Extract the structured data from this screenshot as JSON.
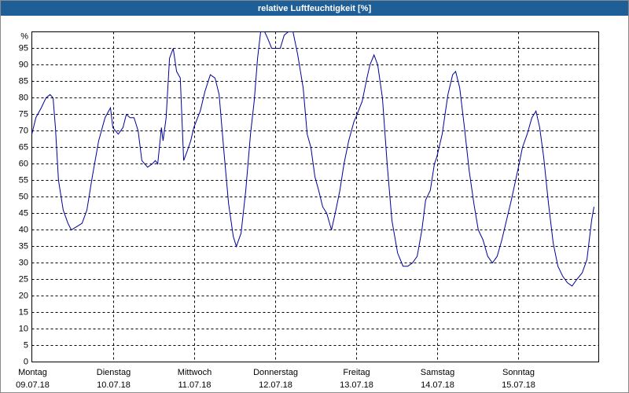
{
  "chart_data": {
    "type": "line",
    "title": "relative Luftfeuchtigkeit [%]",
    "xlim": [
      0,
      168
    ],
    "xticks": [
      {
        "value": 0,
        "label": "Montag"
      },
      {
        "value": 24,
        "label": "Dienstag"
      },
      {
        "value": 48,
        "label": "Mittwoch"
      },
      {
        "value": 72,
        "label": "Donnerstag"
      },
      {
        "value": 96,
        "label": "Freitag"
      },
      {
        "value": 120,
        "label": "Samstag"
      },
      {
        "value": 144,
        "label": "Sonntag"
      }
    ],
    "dates": [
      "09.07.18",
      "10.07.18",
      "11.07.18",
      "12.07.18",
      "13.07.18",
      "14.07.18",
      "15.07.18"
    ],
    "ylim": [
      0,
      100
    ],
    "yticks": [
      0,
      5,
      10,
      15,
      20,
      25,
      30,
      35,
      40,
      45,
      50,
      55,
      60,
      65,
      70,
      75,
      80,
      85,
      90,
      95,
      {
        "value": 100,
        "label": "%"
      }
    ],
    "grid": true,
    "series": [
      {
        "name": "relative Luftfeuchtigkeit",
        "color": "#00009c",
        "x": [
          0,
          1.2,
          2.8,
          4.2,
          5.4,
          6.3,
          7.0,
          7.9,
          9.3,
          10.7,
          11.7,
          13.3,
          14.9,
          16.3,
          17.9,
          19.8,
          21.7,
          23.3,
          24,
          25.6,
          27.0,
          28.0,
          29.1,
          30.3,
          31.5,
          32.6,
          34.3,
          35.7,
          36.6,
          37.3,
          38.4,
          38.9,
          39.8,
          40.8,
          41.9,
          42.9,
          44.0,
          45.0,
          46.1,
          47.1,
          48,
          49.9,
          51.3,
          52.9,
          54.3,
          55.5,
          56.9,
          58.3,
          59.7,
          60.6,
          62.0,
          63.4,
          64.8,
          65.9,
          66.9,
          67.8,
          69.0,
          69.9,
          71.1,
          72,
          73.6,
          74.8,
          76.0,
          77.4,
          78.8,
          80.4,
          81.6,
          82.7,
          83.9,
          85.0,
          86.2,
          87.4,
          88.8,
          89.9,
          91.3,
          92.5,
          93.9,
          95.5,
          96,
          97.9,
          99.3,
          100.2,
          101.4,
          102.5,
          103.9,
          105.3,
          106.7,
          108.4,
          110.0,
          111.4,
          112.8,
          114.2,
          115.6,
          116.7,
          118.1,
          119.3,
          120,
          121.6,
          123.3,
          124.7,
          125.6,
          126.8,
          128.2,
          129.6,
          131.0,
          132.3,
          133.7,
          135.1,
          136.5,
          137.9,
          139.3,
          140.7,
          142.1,
          144,
          145.4,
          146.8,
          148.2,
          149.4,
          150.5,
          151.7,
          153.1,
          154.5,
          155.9,
          157.3,
          158.7,
          160.1,
          161.5,
          163.1,
          164.5,
          165.9,
          166.6
        ],
        "values": [
          69,
          74,
          77,
          80,
          81,
          80,
          71,
          55,
          46,
          42,
          40,
          41,
          42,
          46,
          56,
          67,
          74,
          77,
          71,
          69,
          71,
          75,
          74,
          74,
          70,
          61,
          59,
          60,
          61,
          60,
          71,
          67,
          74,
          92,
          95,
          88,
          86,
          61,
          64,
          67,
          71,
          76,
          82,
          87,
          86,
          81,
          64,
          48,
          38,
          35,
          39,
          52,
          69,
          79,
          92,
          100,
          100,
          98,
          95,
          95,
          95,
          99,
          100,
          100,
          93,
          83,
          69,
          65,
          56,
          52,
          47,
          45,
          40,
          45,
          52,
          60,
          67,
          73,
          74,
          79,
          86,
          90,
          93,
          90,
          80,
          60,
          43,
          33,
          29,
          29,
          30,
          32,
          40,
          49,
          52,
          60,
          62,
          69,
          81,
          87,
          88,
          83,
          71,
          58,
          48,
          40,
          37,
          32,
          30,
          32,
          37,
          43,
          49,
          58,
          65,
          69,
          74,
          76,
          71,
          62,
          48,
          36,
          29,
          26,
          24,
          23,
          25,
          27,
          31,
          43,
          47
        ]
      }
    ]
  }
}
